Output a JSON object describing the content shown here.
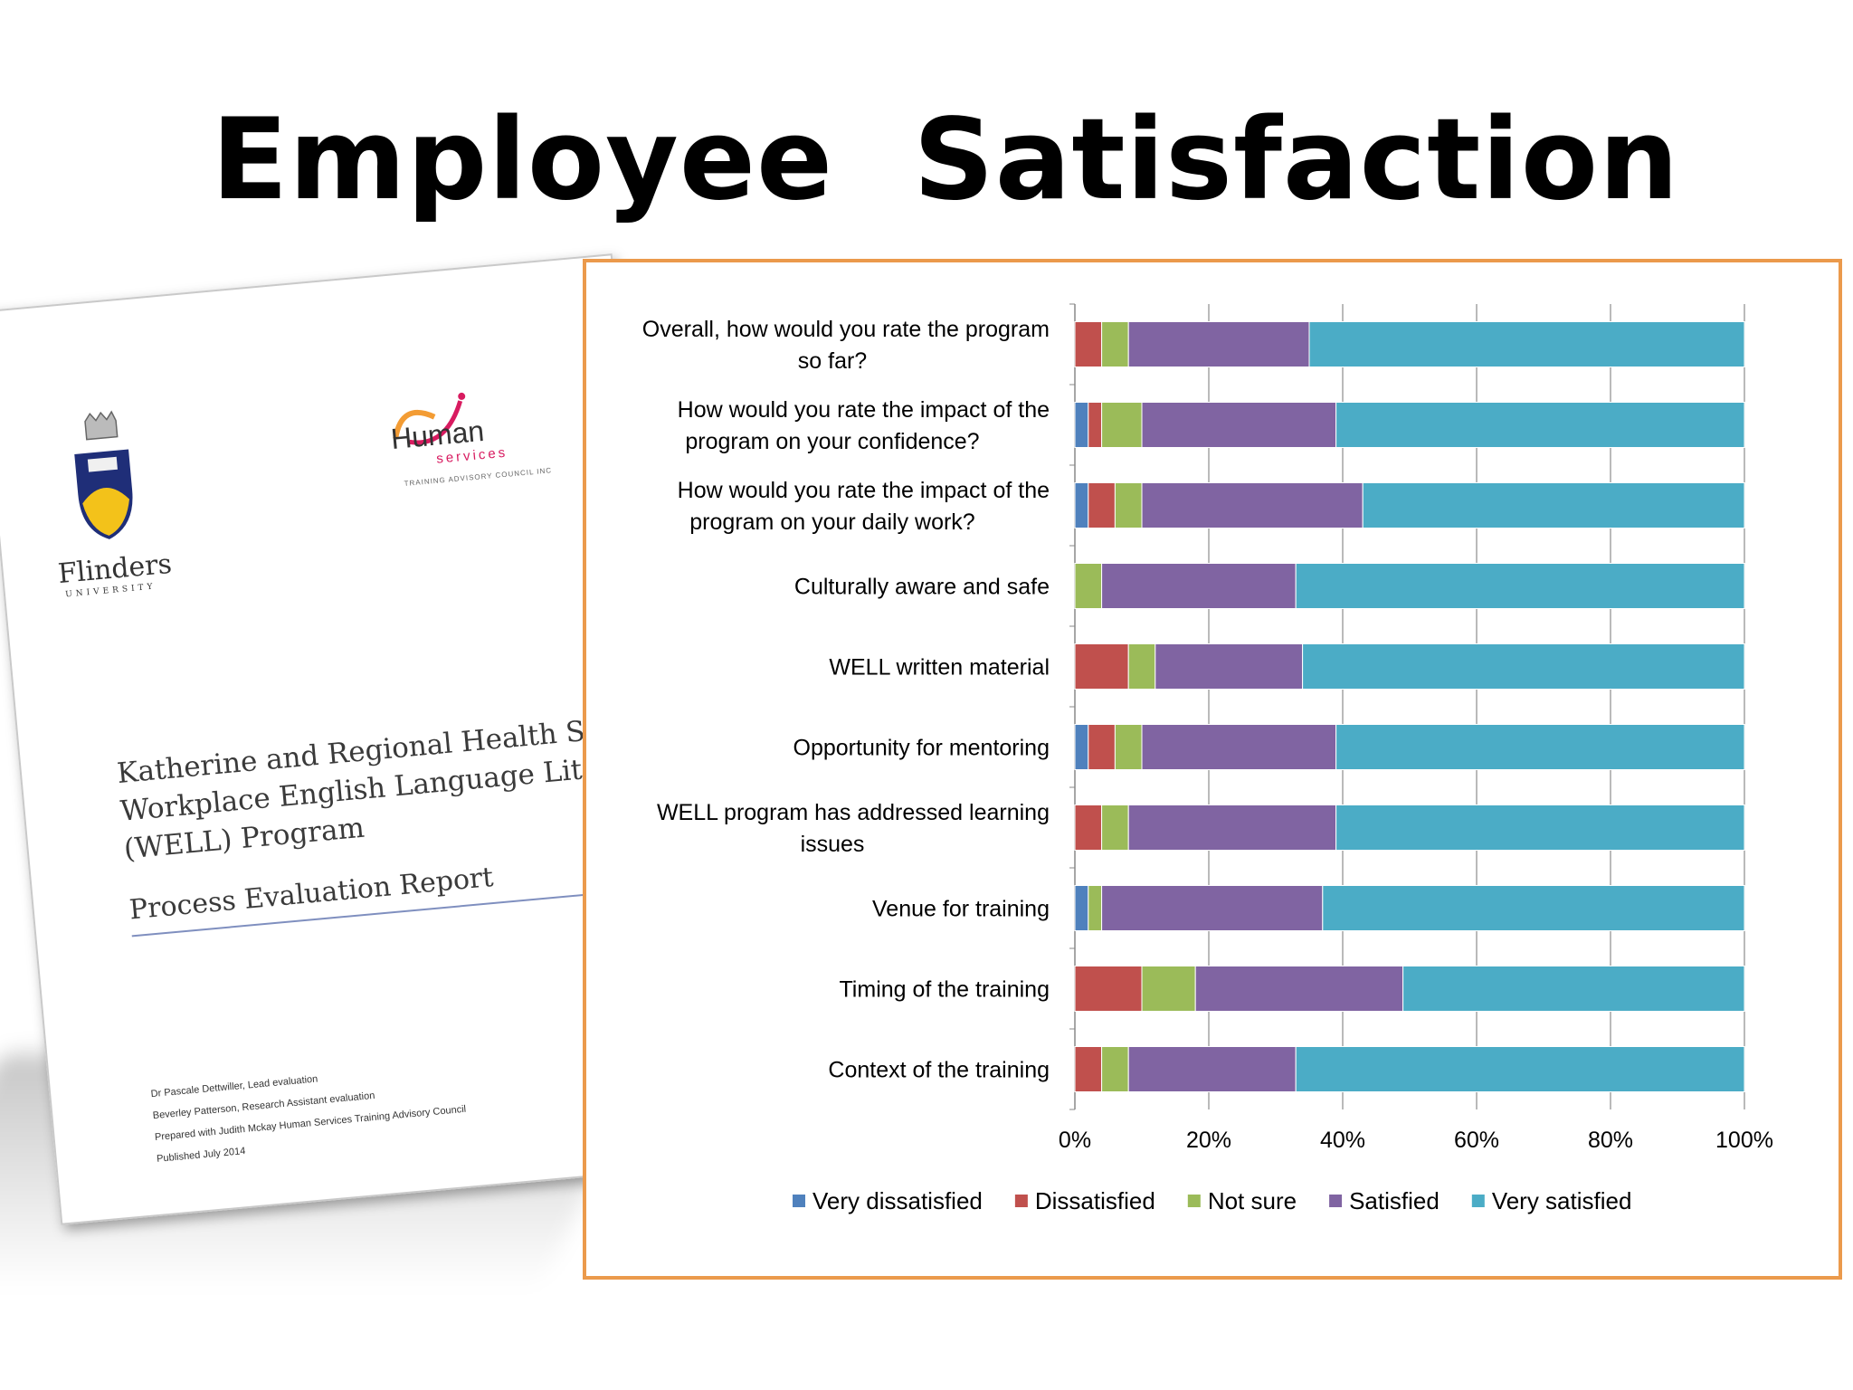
{
  "slide": {
    "title": "Employee  Satisfaction"
  },
  "report_cover": {
    "university_name": "Flinders",
    "university_sub": "UNIVERSITY",
    "partner_human": "Human",
    "partner_services": "services",
    "partner_council": "TRAINING ADVISORY COUNCIL INC",
    "title_lines": [
      "Katherine and Regional Health Services",
      "Workplace  English  Language  Literacy",
      "(WELL) Program"
    ],
    "subtitle": "Process Evaluation Report",
    "credits": [
      "Dr Pascale Dettwiller, Lead evaluation",
      "Beverley Patterson, Research Assistant evaluation",
      "Prepared with Judith Mckay Human Services Training Advisory Council",
      "Published July 2014"
    ]
  },
  "chart_data": {
    "type": "bar",
    "orientation": "horizontal",
    "stacked": "percent",
    "categories": [
      [
        "Overall, how would you rate the program",
        "so far?"
      ],
      [
        "How would you rate the impact of the",
        "program on your confidence?"
      ],
      [
        "How would you rate the impact of the",
        "program on your daily work?"
      ],
      [
        "Culturally aware and safe"
      ],
      [
        "WELL written material"
      ],
      [
        "Opportunity for mentoring"
      ],
      [
        "WELL program has addressed learning",
        "issues"
      ],
      [
        "Venue for training"
      ],
      [
        "Timing of the training"
      ],
      [
        "Context of the training"
      ]
    ],
    "series": [
      {
        "name": "Very dissatisfied",
        "color": "#4f81bd",
        "values": [
          0,
          2,
          2,
          0,
          0,
          2,
          0,
          2,
          0,
          0
        ]
      },
      {
        "name": "Dissatisfied",
        "color": "#c0504d",
        "values": [
          4,
          2,
          4,
          0,
          8,
          4,
          4,
          0,
          10,
          4
        ]
      },
      {
        "name": "Not sure",
        "color": "#9bbb59",
        "values": [
          4,
          6,
          4,
          4,
          4,
          4,
          4,
          2,
          8,
          4
        ]
      },
      {
        "name": "Satisfied",
        "color": "#8064a2",
        "values": [
          27,
          29,
          33,
          29,
          22,
          29,
          31,
          33,
          31,
          25
        ]
      },
      {
        "name": "Very satisfied",
        "color": "#4bacc6",
        "values": [
          65,
          61,
          57,
          67,
          66,
          61,
          61,
          63,
          51,
          67
        ]
      }
    ],
    "x_ticks": [
      "0%",
      "20%",
      "40%",
      "60%",
      "80%",
      "100%"
    ],
    "xlim": [
      0,
      100
    ],
    "grid": true,
    "legend_position": "bottom"
  }
}
